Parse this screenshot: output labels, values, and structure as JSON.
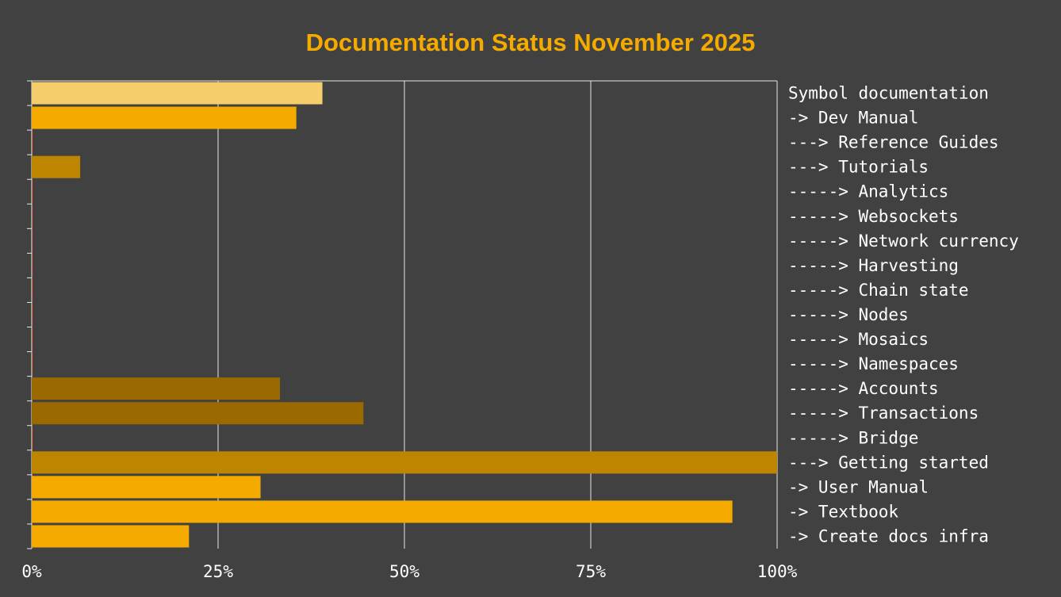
{
  "chart_data": {
    "type": "hbar",
    "title": "Documentation Status November 2025",
    "categories": [
      "Symbol documentation",
      "-> Dev Manual",
      "---> Reference Guides",
      "---> Tutorials",
      "-----> Analytics",
      "-----> Websockets",
      "-----> Network currency",
      "-----> Harvesting",
      "-----> Chain state",
      "-----> Nodes",
      "-----> Mosaics",
      "-----> Namespaces",
      "-----> Accounts",
      "-----> Transactions",
      "-----> Bridge",
      "---> Getting started",
      "-> User Manual",
      "-> Textbook",
      "-> Create docs infra"
    ],
    "values": [
      39,
      35.5,
      0,
      6.5,
      0,
      0,
      0,
      0,
      0,
      0,
      0,
      0,
      33.3,
      44.5,
      0,
      100,
      30.7,
      94,
      21.1
    ],
    "colors": [
      "#f5cd6a",
      "#f5aa00",
      "#f08060",
      "#be8500",
      "#f08060",
      "#f08060",
      "#f08060",
      "#f08060",
      "#f08060",
      "#f08060",
      "#f08060",
      "#f08060",
      "#9a6a00",
      "#9a6a00",
      "#f08060",
      "#be8500",
      "#f5aa00",
      "#f5aa00",
      "#f5aa00"
    ],
    "xlim": [
      0,
      100
    ],
    "xticks": [
      {
        "value": 0,
        "label": "0%"
      },
      {
        "value": 25,
        "label": "25%"
      },
      {
        "value": 50,
        "label": "50%"
      },
      {
        "value": 75,
        "label": "75%"
      },
      {
        "value": 100,
        "label": "100%"
      }
    ],
    "grid": true
  }
}
